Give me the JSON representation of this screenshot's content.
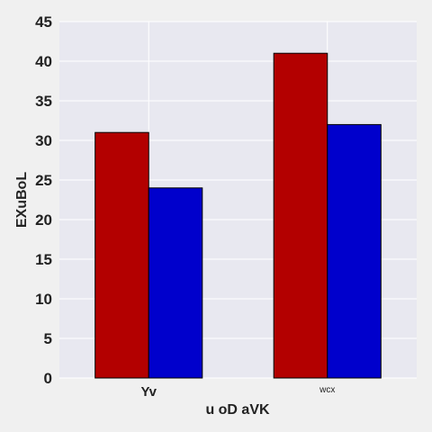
{
  "chart_data": {
    "type": "bar",
    "title": "",
    "xlabel": "u oD aVK",
    "ylabel": "EXuBoL",
    "categories": [
      "Yv",
      "wcx"
    ],
    "series": [
      {
        "color": "#b30000",
        "values": [
          31,
          41
        ]
      },
      {
        "color": "#0000cc",
        "values": [
          24,
          32
        ]
      }
    ],
    "ylim": [
      0,
      45
    ],
    "yticks": [
      0,
      5,
      10,
      15,
      20,
      25,
      30,
      35,
      40,
      45
    ],
    "grid": true,
    "legend": "none",
    "plot_background": "#e8e8f0",
    "grid_color": "#ffffff"
  }
}
